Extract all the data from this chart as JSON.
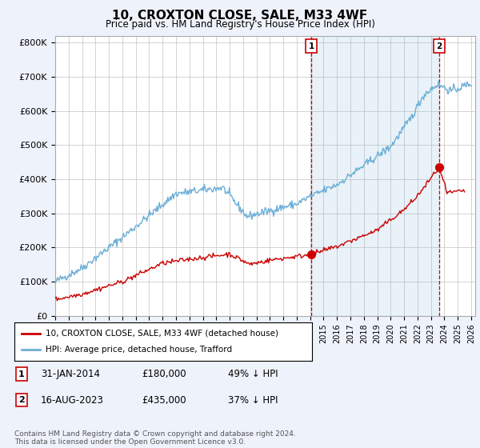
{
  "title": "10, CROXTON CLOSE, SALE, M33 4WF",
  "subtitle": "Price paid vs. HM Land Registry's House Price Index (HPI)",
  "ylabel_ticks": [
    "£0",
    "£100K",
    "£200K",
    "£300K",
    "£400K",
    "£500K",
    "£600K",
    "£700K",
    "£800K"
  ],
  "ytick_values": [
    0,
    100000,
    200000,
    300000,
    400000,
    500000,
    600000,
    700000,
    800000
  ],
  "ylim": [
    0,
    820000
  ],
  "xlim_start": 1995.0,
  "xlim_end": 2026.3,
  "hpi_color": "#6baed6",
  "hpi_fill_color": "#ddeeff",
  "price_color": "#cc0000",
  "marker1_date": 2014.08,
  "marker1_price": 180000,
  "marker1_label": "1",
  "marker2_date": 2023.62,
  "marker2_price": 435000,
  "marker2_label": "2",
  "legend_line1": "10, CROXTON CLOSE, SALE, M33 4WF (detached house)",
  "legend_line2": "HPI: Average price, detached house, Trafford",
  "table_row1": [
    "1",
    "31-JAN-2014",
    "£180,000",
    "49% ↓ HPI"
  ],
  "table_row2": [
    "2",
    "16-AUG-2023",
    "£435,000",
    "37% ↓ HPI"
  ],
  "footnote": "Contains HM Land Registry data © Crown copyright and database right 2024.\nThis data is licensed under the Open Government Licence v3.0.",
  "background_color": "#eef2fb",
  "plot_bg_color": "#ffffff"
}
